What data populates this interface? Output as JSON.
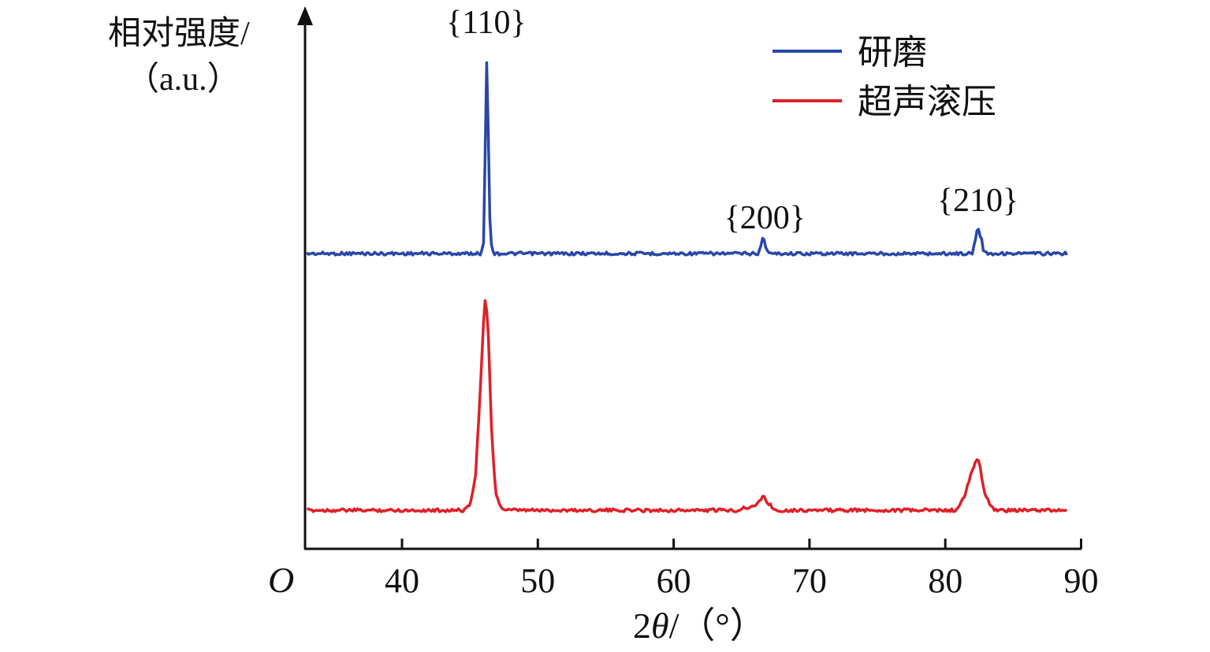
{
  "chart_data": {
    "type": "line",
    "ylabel_line1": "相对强度/",
    "ylabel_line2": "（a.u.）",
    "xlabel_prefix": "2",
    "xlabel_symbol": "θ",
    "xlabel_suffix": "/（°）",
    "origin_label": "O",
    "xlim": [
      33,
      90
    ],
    "x_ticks": [
      40,
      50,
      60,
      70,
      80,
      90
    ],
    "x_tick_labels": [
      "40",
      "50",
      "60",
      "70",
      "80",
      "90"
    ],
    "y_ticks": false,
    "grid": false,
    "legend_position": "top-right",
    "peaks": [
      {
        "label": "{110}",
        "x": 46.2
      },
      {
        "label": "{200}",
        "x": 66.6
      },
      {
        "label": "{210}",
        "x": 82.4
      }
    ],
    "series": [
      {
        "name": "研磨",
        "color": "#2a47a8",
        "baseline": 0,
        "points": [
          [
            33.0,
            0
          ],
          [
            45.8,
            0
          ],
          [
            46.0,
            0.05
          ],
          [
            46.15,
            0.6
          ],
          [
            46.25,
            1.0
          ],
          [
            46.35,
            0.6
          ],
          [
            46.5,
            0.05
          ],
          [
            46.8,
            0
          ],
          [
            66.2,
            0
          ],
          [
            66.45,
            0.04
          ],
          [
            66.6,
            0.09
          ],
          [
            66.75,
            0.04
          ],
          [
            67.0,
            0
          ],
          [
            82.0,
            0
          ],
          [
            82.25,
            0.08
          ],
          [
            82.4,
            0.145
          ],
          [
            82.55,
            0.08
          ],
          [
            82.65,
            0.09
          ],
          [
            82.8,
            0.02
          ],
          [
            83.1,
            0
          ],
          [
            89.0,
            0
          ]
        ]
      },
      {
        "name": "超声滚压",
        "color": "#e02028",
        "baseline": 0,
        "points": [
          [
            33.0,
            0
          ],
          [
            44.6,
            0
          ],
          [
            45.0,
            0.03
          ],
          [
            45.4,
            0.15
          ],
          [
            45.8,
            0.6
          ],
          [
            46.0,
            0.88
          ],
          [
            46.15,
            1.0
          ],
          [
            46.35,
            0.82
          ],
          [
            46.6,
            0.35
          ],
          [
            46.9,
            0.08
          ],
          [
            47.3,
            0.01
          ],
          [
            47.7,
            0
          ],
          [
            64.8,
            0
          ],
          [
            65.2,
            0.015
          ],
          [
            65.6,
            0.01
          ],
          [
            66.2,
            0.03
          ],
          [
            66.6,
            0.07
          ],
          [
            67.0,
            0.03
          ],
          [
            67.5,
            0
          ],
          [
            80.8,
            0
          ],
          [
            81.4,
            0.06
          ],
          [
            81.9,
            0.17
          ],
          [
            82.3,
            0.24
          ],
          [
            82.5,
            0.22
          ],
          [
            82.9,
            0.08
          ],
          [
            83.4,
            0.01
          ],
          [
            84.0,
            0
          ],
          [
            89.0,
            0
          ]
        ]
      }
    ]
  }
}
